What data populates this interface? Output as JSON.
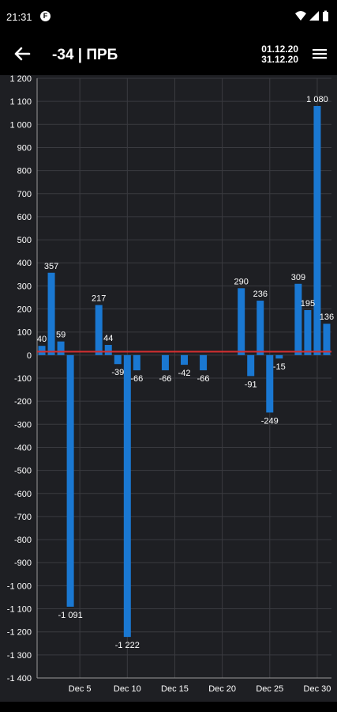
{
  "status_bar": {
    "time": "21:31",
    "app_icon": "F"
  },
  "app_bar": {
    "title": "-34 | ПРБ",
    "date_from": "01.12.20",
    "date_to": "31.12.20"
  },
  "chart_data": {
    "type": "bar",
    "title": "",
    "xlabel": "",
    "ylabel": "",
    "ylim": [
      -1400,
      1200
    ],
    "y_ticks": [
      1200,
      1100,
      1000,
      900,
      800,
      700,
      600,
      500,
      400,
      300,
      200,
      100,
      0,
      -100,
      -200,
      -300,
      -400,
      -500,
      -600,
      -700,
      -800,
      -900,
      -1000,
      -1100,
      -1200,
      -1300,
      -1400
    ],
    "y_tick_labels": [
      "1 200",
      "1 100",
      "1 000",
      "900",
      "800",
      "700",
      "600",
      "500",
      "400",
      "300",
      "200",
      "100",
      "0",
      "-100",
      "-200",
      "-300",
      "-400",
      "-500",
      "-600",
      "-700",
      "-800",
      "-900",
      "-1 000",
      "-1 100",
      "-1 200",
      "-1 300",
      "-1 400"
    ],
    "x_ticks": [
      {
        "day": 5,
        "label": "Dec 5"
      },
      {
        "day": 10,
        "label": "Dec 10"
      },
      {
        "day": 15,
        "label": "Dec 15"
      },
      {
        "day": 20,
        "label": "Dec 20"
      },
      {
        "day": 25,
        "label": "Dec 25"
      },
      {
        "day": 30,
        "label": "Dec 30"
      }
    ],
    "bars": [
      {
        "day": 1,
        "value": 40,
        "label": "40"
      },
      {
        "day": 2,
        "value": 357,
        "label": "357"
      },
      {
        "day": 3,
        "value": 59,
        "label": "59"
      },
      {
        "day": 4,
        "value": -1091,
        "label": "-1 091"
      },
      {
        "day": 7,
        "value": 217,
        "label": "217"
      },
      {
        "day": 8,
        "value": 44,
        "label": "44"
      },
      {
        "day": 9,
        "value": -39,
        "label": "-39"
      },
      {
        "day": 10,
        "value": -1222,
        "label": "-1 222"
      },
      {
        "day": 11,
        "value": -66,
        "label": "-66"
      },
      {
        "day": 14,
        "value": -66,
        "label": "-66"
      },
      {
        "day": 16,
        "value": -42,
        "label": "-42"
      },
      {
        "day": 18,
        "value": -66,
        "label": "-66"
      },
      {
        "day": 22,
        "value": 290,
        "label": "290"
      },
      {
        "day": 23,
        "value": -91,
        "label": "-91"
      },
      {
        "day": 24,
        "value": 236,
        "label": "236"
      },
      {
        "day": 25,
        "value": -249,
        "label": "-249"
      },
      {
        "day": 26,
        "value": -15,
        "label": "-15"
      },
      {
        "day": 28,
        "value": 309,
        "label": "309"
      },
      {
        "day": 29,
        "value": 195,
        "label": "195"
      },
      {
        "day": 30,
        "value": 1080,
        "label": "1 080"
      },
      {
        "day": 31,
        "value": 136,
        "label": "136"
      }
    ],
    "reference_line": 15,
    "bar_color": "#1a78d2",
    "reference_line_color": "#d32f2f",
    "grid": true
  }
}
